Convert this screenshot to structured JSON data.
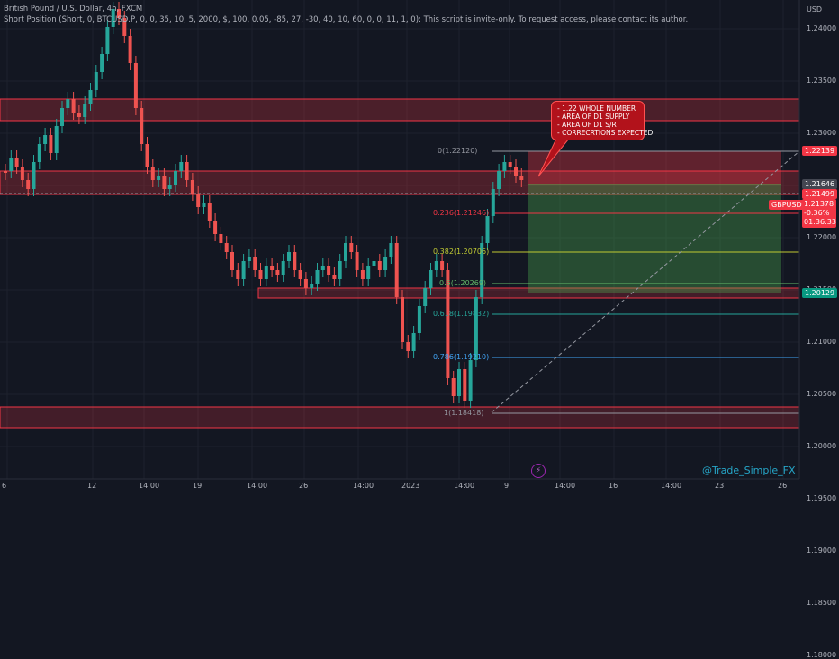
{
  "header": {
    "symbol_line": "British Pound / U.S. Dollar, 4h, FXCM",
    "indicator_line": "Short Position (Short, 0, BTCUSD.P, 0, 0, 35, 10, 5, 2000, $, 100, 0.05, -85, 27, -30, 40, 10, 60, 0, 0, 11, 1, 0): This script is invite-only. To request access, please contact its author."
  },
  "price_axis": {
    "currency": "USD",
    "ticks": [
      "1.24000",
      "1.23500",
      "1.23000",
      "1.22500",
      "1.22000",
      "1.21500",
      "1.21000",
      "1.20500",
      "1.20000",
      "1.19500",
      "1.19000",
      "1.18500",
      "1.18000"
    ]
  },
  "time_axis": {
    "ticks": [
      "6",
      "12",
      "14:00",
      "19",
      "14:00",
      "26",
      "14:00",
      "2023",
      "14:00",
      "9",
      "14:00",
      "16",
      "14:00",
      "23",
      "26"
    ]
  },
  "price_tags": {
    "stop": "1.22139",
    "current": "1.21646",
    "entry": "1.21499",
    "last": "1.21378",
    "change": "-0.36%",
    "countdown": "01:36:33",
    "symbol": "GBPUSD",
    "target": "1.20129"
  },
  "fib_levels": [
    {
      "label": "0(1.22120)",
      "color": "#9598a1"
    },
    {
      "label": "0.236(1.21246)",
      "color": "#f23645"
    },
    {
      "label": "0.382(1.20706)",
      "color": "#c0ca33"
    },
    {
      "label": "0.5(1.20269)",
      "color": "#66bb6a"
    },
    {
      "label": "0.618(1.19832)",
      "color": "#26a69a"
    },
    {
      "label": "0.786(1.19210)",
      "color": "#42a5f5"
    },
    {
      "label": "1(1.18418)",
      "color": "#9598a1"
    }
  ],
  "annotation": {
    "lines": [
      "- 1.22 WHOLE NUMBER",
      "- AREA OF D1 SUPPLY",
      "- AREA OF D1 S/R",
      "- CORRECRTIONS EXPECTED"
    ]
  },
  "watermark": "@Trade_Simple_FX",
  "colors": {
    "bull": "#26a69a",
    "bear": "#ef5350",
    "zone": "#f23645",
    "profit": "#4caf50",
    "loss": "#f23645"
  }
}
